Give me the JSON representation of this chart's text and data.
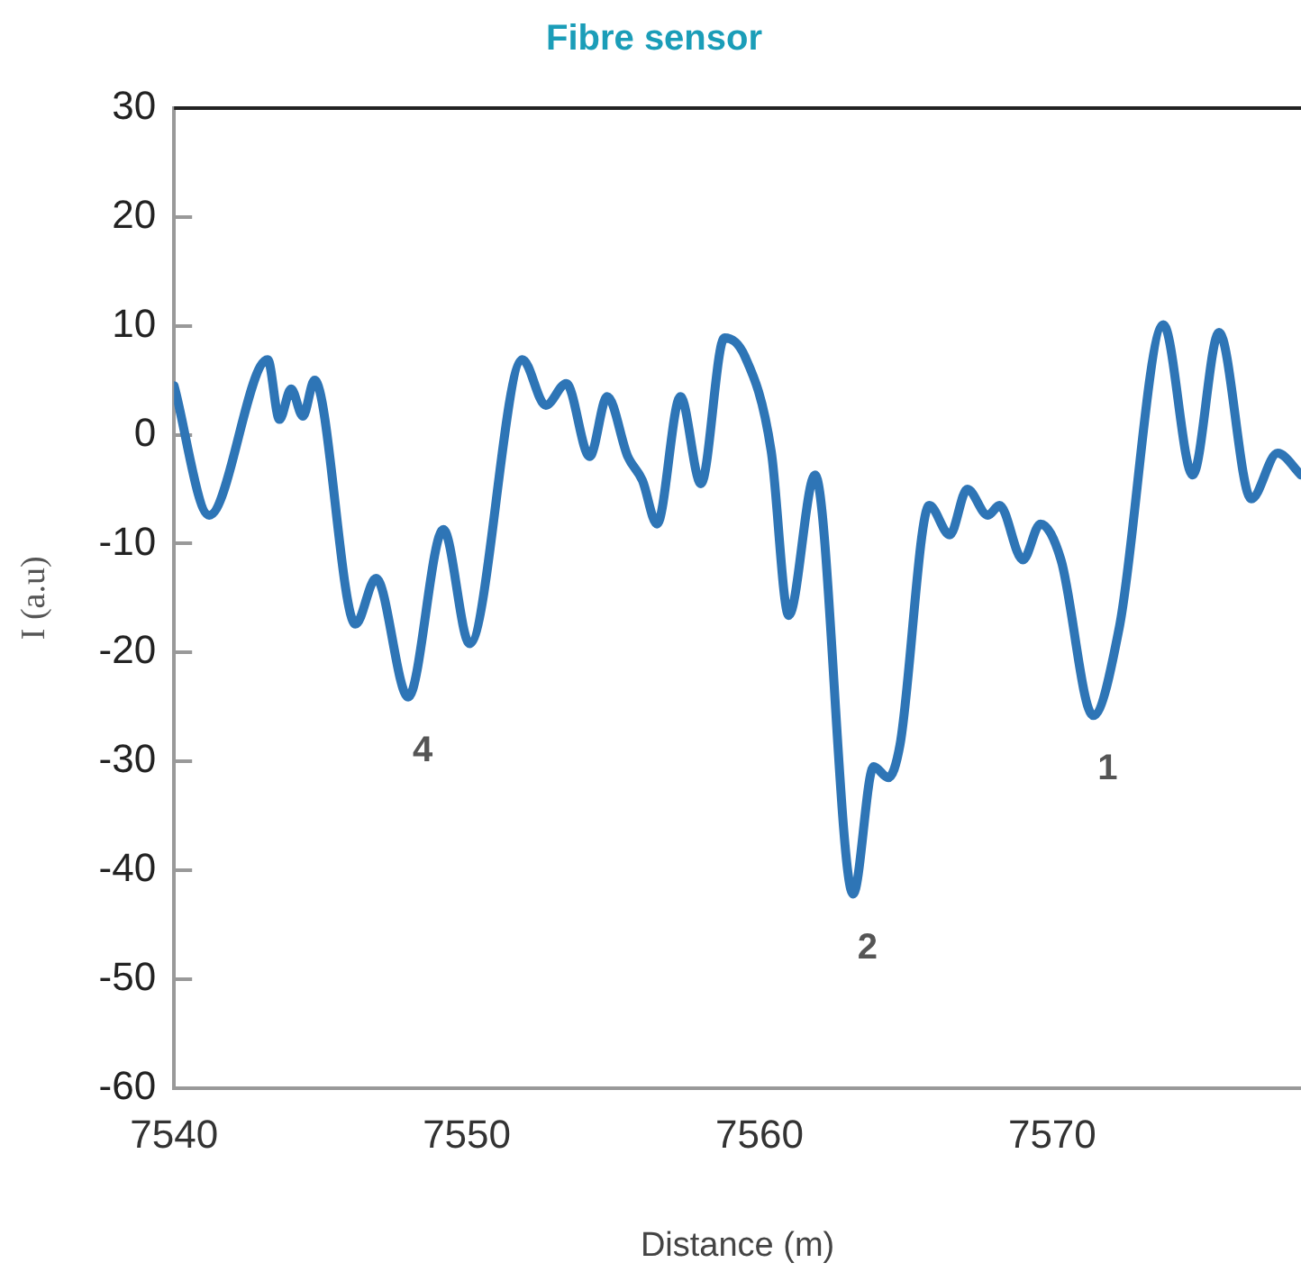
{
  "chart_data": {
    "type": "line",
    "title": "Fibre sensor",
    "xlabel": "Distance (m)",
    "ylabel": "I (a.u)",
    "x": [
      7540,
      7541.2,
      7543.2,
      7543.6,
      7544.0,
      7544.4,
      7544.8,
      7546.2,
      7546.9,
      7548.0,
      7549.2,
      7550.1,
      7551.9,
      7552.7,
      7553.4,
      7554.2,
      7554.8,
      7555.5,
      7556.0,
      7556.5,
      7557.3,
      7558.0,
      7558.8,
      7559.5,
      7560.4,
      7561.0,
      7561.9,
      7563.2,
      7563.9,
      7564.4,
      7564.8,
      7565.8,
      7566.5,
      7567.1,
      7567.8,
      7568.2,
      7569.0,
      7569.6,
      7570.3,
      7571.4,
      7572.3,
      7573.8,
      7574.8,
      7575.7,
      7576.8,
      7577.7,
      7578.5
    ],
    "series": [
      {
        "color": "#2e75b6",
        "values": [
          4.5,
          -7.4,
          6.9,
          1.4,
          4.2,
          1.7,
          5.0,
          -17.4,
          -13.2,
          -24.1,
          -8.7,
          -19.2,
          6.9,
          2.7,
          4.7,
          -2.0,
          3.5,
          -2.0,
          -4.2,
          -8.2,
          3.5,
          -4.5,
          8.9,
          7.2,
          -1.5,
          -16.6,
          -3.7,
          -42.2,
          -30.5,
          -31.5,
          -28.5,
          -6.5,
          -9.2,
          -5.0,
          -7.4,
          -6.5,
          -11.5,
          -8.2,
          -11.5,
          -25.8,
          -17.6,
          10.1,
          -3.7,
          9.4,
          -5.9,
          -1.7,
          -3.7
        ]
      }
    ],
    "xlim": [
      7540,
      7578.5
    ],
    "xticks": [
      7540,
      7550,
      7560,
      7570
    ],
    "ylim": [
      -60,
      30
    ],
    "yticks": [
      -60,
      -50,
      -40,
      -30,
      -20,
      -10,
      0,
      10,
      20,
      30
    ],
    "grid": false,
    "legend": false,
    "marker": "none",
    "line_style": "solid",
    "annotations": [
      {
        "text": "4",
        "x": 7548.0,
        "y": -24.1
      },
      {
        "text": "2",
        "x": 7563.2,
        "y": -42.2
      },
      {
        "text": "1",
        "x": 7571.4,
        "y": -25.8
      }
    ]
  }
}
